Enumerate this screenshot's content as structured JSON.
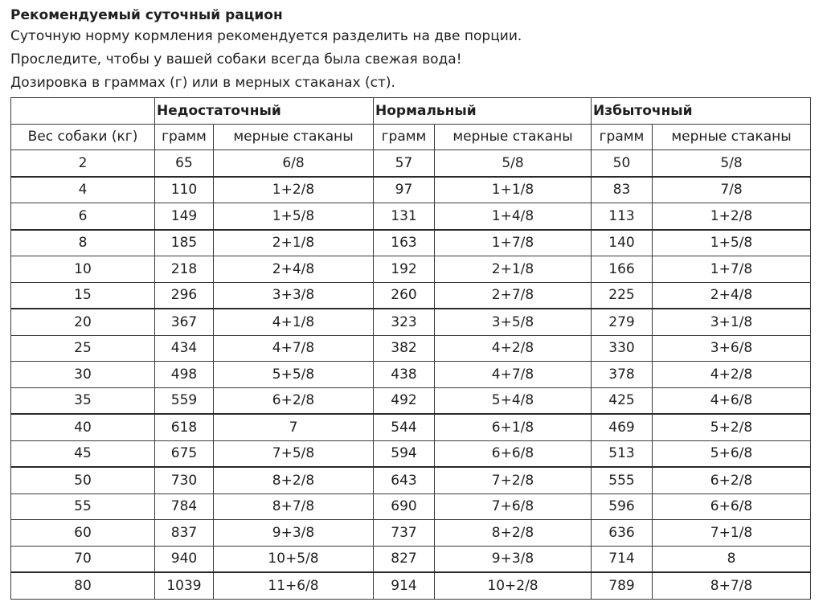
{
  "title": "Рекомендуемый суточный рацион",
  "lines": [
    "Суточную норму кормления рекомендуется разделить на две порции.",
    "Проследите, чтобы у вашей собаки всегда была свежая вода!",
    "Дозировка в граммах (г) или в мерных стаканах (ст)."
  ],
  "table": {
    "groups": [
      "Недостаточный",
      "Нормальный",
      "Избыточный"
    ],
    "weight_header": "Вес собаки (кг)",
    "gram_header": "грамм",
    "cups_header": "мерные стаканы",
    "rows": [
      [
        "2",
        "65",
        "6/8",
        "57",
        "5/8",
        "50",
        "5/8"
      ],
      [
        "4",
        "110",
        "1+2/8",
        "97",
        "1+1/8",
        "83",
        "7/8"
      ],
      [
        "6",
        "149",
        "1+5/8",
        "131",
        "1+4/8",
        "113",
        "1+2/8"
      ],
      [
        "8",
        "185",
        "2+1/8",
        "163",
        "1+7/8",
        "140",
        "1+5/8"
      ],
      [
        "10",
        "218",
        "2+4/8",
        "192",
        "2+1/8",
        "166",
        "1+7/8"
      ],
      [
        "15",
        "296",
        "3+3/8",
        "260",
        "2+7/8",
        "225",
        "2+4/8"
      ],
      [
        "20",
        "367",
        "4+1/8",
        "323",
        "3+5/8",
        "279",
        "3+1/8"
      ],
      [
        "25",
        "434",
        "4+7/8",
        "382",
        "4+2/8",
        "330",
        "3+6/8"
      ],
      [
        "30",
        "498",
        "5+5/8",
        "438",
        "4+7/8",
        "378",
        "4+2/8"
      ],
      [
        "35",
        "559",
        "6+2/8",
        "492",
        "5+4/8",
        "425",
        "4+6/8"
      ],
      [
        "40",
        "618",
        "7",
        "544",
        "6+1/8",
        "469",
        "5+2/8"
      ],
      [
        "45",
        "675",
        "7+5/8",
        "594",
        "6+6/8",
        "513",
        "5+6/8"
      ],
      [
        "50",
        "730",
        "8+2/8",
        "643",
        "7+2/8",
        "555",
        "6+2/8"
      ],
      [
        "55",
        "784",
        "8+7/8",
        "690",
        "7+6/8",
        "596",
        "6+6/8"
      ],
      [
        "60",
        "837",
        "9+3/8",
        "737",
        "8+2/8",
        "636",
        "7+1/8"
      ],
      [
        "70",
        "940",
        "10+5/8",
        "827",
        "9+3/8",
        "714",
        "8"
      ],
      [
        "80",
        "1039",
        "11+6/8",
        "914",
        "10+2/8",
        "789",
        "8+7/8"
      ]
    ]
  }
}
